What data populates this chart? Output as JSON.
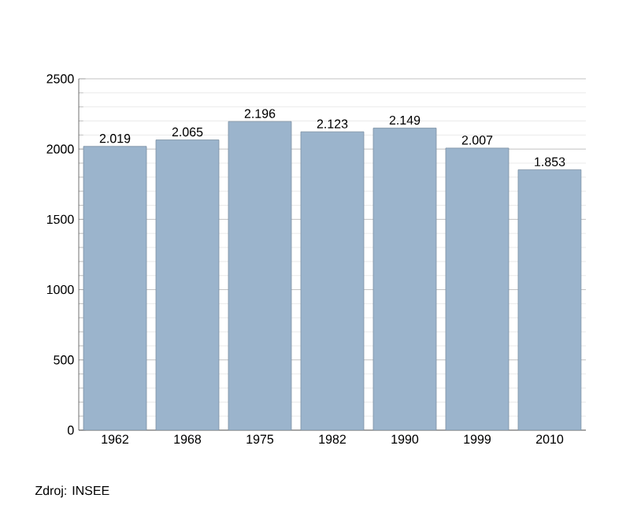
{
  "chart_data": {
    "type": "bar",
    "categories": [
      "1962",
      "1968",
      "1975",
      "1982",
      "1990",
      "1999",
      "2010"
    ],
    "values": [
      2019,
      2065,
      2196,
      2123,
      2149,
      2007,
      1853
    ],
    "value_labels": [
      "2.019",
      "2.065",
      "2.196",
      "2.123",
      "2.149",
      "2.007",
      "1.853"
    ],
    "color": "#9bb4cc",
    "ylim": [
      0,
      2500
    ],
    "yticks": [
      0,
      500,
      1000,
      1500,
      2000,
      2500
    ],
    "grid": "y",
    "annotations": [
      "Zdroj: INSEE"
    ]
  }
}
